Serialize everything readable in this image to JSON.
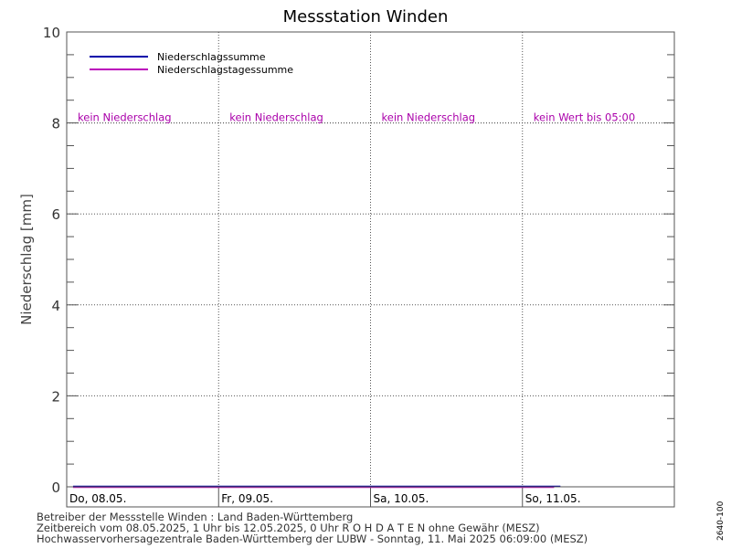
{
  "colors": {
    "sum": "#0000aa",
    "daily": "#bb00bb",
    "annotation": "#aa00aa"
  },
  "chart_data": {
    "type": "line",
    "title": "Messstation Winden",
    "ylabel": "Niederschlag [mm]",
    "ylim": [
      0,
      10
    ],
    "yticks": [
      "0",
      "2",
      "4",
      "6",
      "8",
      "10"
    ],
    "grid": true,
    "legend_position": "top-left",
    "day_labels": [
      "Do, 08.05.",
      "Fr, 09.05.",
      "Sa, 10.05.",
      "So, 11.05."
    ],
    "annotations": [
      "kein Niederschlag",
      "kein Niederschlag",
      "kein Niederschlag",
      "kein Wert bis 05:00"
    ],
    "annotation_y": 8,
    "series": [
      {
        "name": "Niederschlagssumme",
        "color": "#0000aa",
        "x": [
          "08.05.2025 01:00",
          "11.05.2025 06:00"
        ],
        "y": [
          0,
          0
        ]
      },
      {
        "name": "Niederschlagstagessumme",
        "color": "#bb00bb",
        "x": [
          "08.05.2025 01:00",
          "11.05.2025 05:00"
        ],
        "y": [
          0,
          0
        ]
      }
    ]
  },
  "footer": {
    "line1": "Betreiber der Messstelle Winden : Land Baden-Württemberg",
    "line2": "Zeitbereich vom 08.05.2025, 1 Uhr bis 12.05.2025, 0 Uhr   R O H D A T E N ohne Gewähr (MESZ)",
    "line3": "Hochwasservorhersagezentrale Baden-Württemberg der LUBW -  Sonntag, 11. Mai 2025 06:09:00 (MESZ)"
  },
  "side_code": "2640-100"
}
